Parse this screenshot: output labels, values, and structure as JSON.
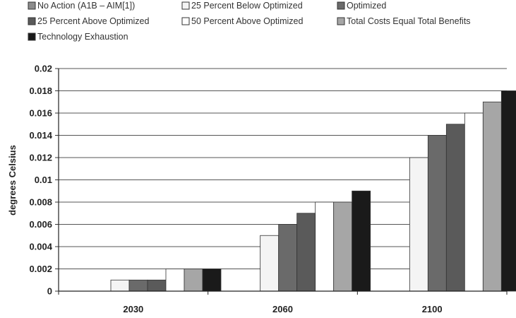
{
  "chart_data": {
    "type": "bar",
    "title": "",
    "xlabel": "",
    "ylabel": "degrees Celsius",
    "ylim": [
      0,
      0.02
    ],
    "yticks": [
      0,
      0.002,
      0.004,
      0.006,
      0.008,
      0.01,
      0.012,
      0.014,
      0.016,
      0.018,
      0.02
    ],
    "ytick_labels": [
      "0",
      "0.002",
      "0.004",
      "0.006",
      "0.008",
      "0.01",
      "0.012",
      "0.014",
      "0.016",
      "0.018",
      "0.02"
    ],
    "grid": true,
    "legend_position": "top",
    "categories": [
      "2030",
      "2060",
      "2100"
    ],
    "series": [
      {
        "name": "No Action (A1B – AIM[1])",
        "color": "#8c8c8c",
        "values": [
          0,
          0,
          0
        ]
      },
      {
        "name": "25 Percent Below Optimized",
        "color": "#f4f4f4",
        "values": [
          0.001,
          0.005,
          0.012
        ]
      },
      {
        "name": "Optimized",
        "color": "#6a6a6a",
        "values": [
          0.001,
          0.006,
          0.014
        ]
      },
      {
        "name": "25 Percent Above Optimized",
        "color": "#5a5a5a",
        "values": [
          0.001,
          0.007,
          0.015
        ]
      },
      {
        "name": "50 Percent Above Optimized",
        "color": "#ffffff",
        "values": [
          0.002,
          0.008,
          0.016
        ]
      },
      {
        "name": "Total Costs Equal Total Benefits",
        "color": "#a6a6a6",
        "values": [
          0.002,
          0.008,
          0.017
        ]
      },
      {
        "name": "Technology Exhaustion",
        "color": "#1a1a1a",
        "values": [
          0.002,
          0.009,
          0.018
        ]
      }
    ]
  }
}
